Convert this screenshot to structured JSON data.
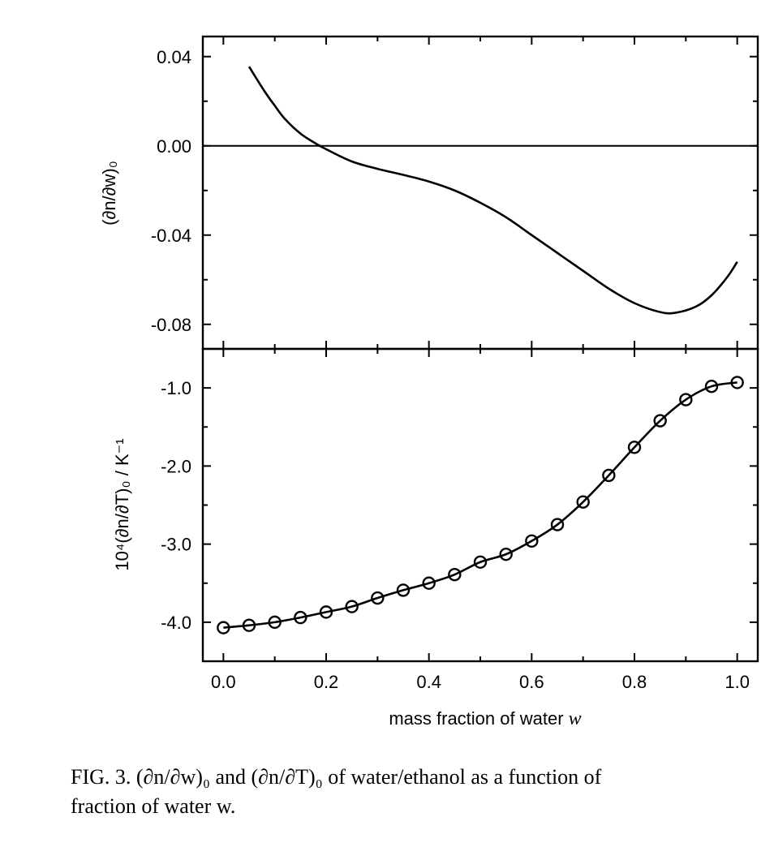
{
  "chart_data": [
    {
      "type": "line",
      "panel": "top",
      "ylabel": "(∂n/∂w)₀",
      "xlim": [
        -0.04,
        1.04
      ],
      "ylim": [
        -0.091,
        0.049
      ],
      "yticks": [
        0.04,
        0.0,
        -0.04,
        -0.08
      ],
      "ytick_labels": [
        "0.04",
        "0.00",
        "-0.04",
        "-0.08"
      ],
      "reference_line_y": 0.0,
      "series": [
        {
          "x": [
            0.05,
            0.08,
            0.1,
            0.12,
            0.15,
            0.18,
            0.2,
            0.25,
            0.3,
            0.35,
            0.4,
            0.45,
            0.5,
            0.55,
            0.6,
            0.65,
            0.7,
            0.75,
            0.8,
            0.85,
            0.88,
            0.92,
            0.95,
            0.98,
            1.0
          ],
          "y": [
            0.0355,
            0.0245,
            0.018,
            0.012,
            0.0055,
            0.001,
            -0.0015,
            -0.007,
            -0.0103,
            -0.013,
            -0.016,
            -0.02,
            -0.0255,
            -0.032,
            -0.04,
            -0.048,
            -0.056,
            -0.064,
            -0.0705,
            -0.0745,
            -0.0748,
            -0.072,
            -0.067,
            -0.059,
            -0.052
          ]
        }
      ]
    },
    {
      "type": "scatter",
      "panel": "bottom",
      "xlabel": "mass fraction of water",
      "xlabel_symbol": "w",
      "ylabel": "10⁴(∂n/∂T)₀ / K⁻¹",
      "xlim": [
        -0.04,
        1.04
      ],
      "ylim": [
        -4.5,
        -0.5
      ],
      "xticks": [
        0.0,
        0.2,
        0.4,
        0.6,
        0.8,
        1.0
      ],
      "xtick_labels": [
        "0.0",
        "0.2",
        "0.4",
        "0.6",
        "0.8",
        "1.0"
      ],
      "yticks": [
        -1.0,
        -2.0,
        -3.0,
        -4.0
      ],
      "ytick_labels": [
        "-1.0",
        "-2.0",
        "-3.0",
        "-4.0"
      ],
      "series": [
        {
          "x": [
            0.0,
            0.05,
            0.1,
            0.15,
            0.2,
            0.25,
            0.3,
            0.35,
            0.4,
            0.45,
            0.5,
            0.55,
            0.6,
            0.65,
            0.7,
            0.75,
            0.8,
            0.85,
            0.9,
            0.95,
            1.0
          ],
          "y": [
            -4.07,
            -4.04,
            -4.0,
            -3.94,
            -3.87,
            -3.8,
            -3.69,
            -3.59,
            -3.5,
            -3.39,
            -3.23,
            -3.13,
            -2.96,
            -2.75,
            -2.46,
            -2.12,
            -1.76,
            -1.42,
            -1.15,
            -0.98,
            -0.93
          ]
        }
      ]
    }
  ],
  "caption": {
    "line1": "FIG. 3. (∂n/∂w)₀ and (∂n/∂T)₀ of water/ethanol as a function of",
    "line2": "fraction of water w."
  }
}
